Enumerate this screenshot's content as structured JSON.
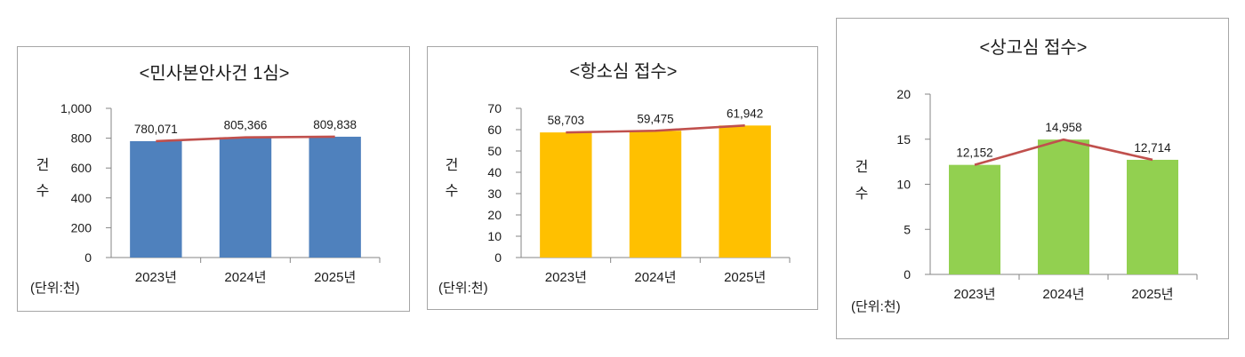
{
  "chart_data": [
    {
      "type": "bar",
      "title": "<민사본안사건 1심>",
      "categories": [
        "2023년",
        "2024년",
        "2025년"
      ],
      "values": [
        780.071,
        805.366,
        809.838
      ],
      "data_labels": [
        "780,071",
        "805,366",
        "809,838"
      ],
      "overlay_line": true,
      "ylabel": "건수",
      "ylabel_chars": [
        "건",
        "수"
      ],
      "unit": "(단위:천)",
      "ylim": [
        0,
        1000
      ],
      "yticks": [
        0,
        200,
        400,
        600,
        800,
        1000
      ],
      "ytick_labels": [
        "0",
        "200",
        "400",
        "600",
        "800",
        "1,000"
      ],
      "bar_color": "#4f81bd",
      "line_color": "#c0504d",
      "grid": false
    },
    {
      "type": "bar",
      "title": "<항소심 접수>",
      "categories": [
        "2023년",
        "2024년",
        "2025년"
      ],
      "values": [
        58.703,
        59.475,
        61.942
      ],
      "data_labels": [
        "58,703",
        "59,475",
        "61,942"
      ],
      "overlay_line": true,
      "ylabel": "건수",
      "ylabel_chars": [
        "건",
        "수"
      ],
      "unit": "(단위:천)",
      "ylim": [
        0,
        70
      ],
      "yticks": [
        0,
        10,
        20,
        30,
        40,
        50,
        60,
        70
      ],
      "ytick_labels": [
        "0",
        "10",
        "20",
        "30",
        "40",
        "50",
        "60",
        "70"
      ],
      "bar_color": "#ffc000",
      "line_color": "#c0504d",
      "grid": false
    },
    {
      "type": "bar",
      "title": "<상고심 접수>",
      "categories": [
        "2023년",
        "2024년",
        "2025년"
      ],
      "values": [
        12.152,
        14.958,
        12.714
      ],
      "data_labels": [
        "12,152",
        "14,958",
        "12,714"
      ],
      "overlay_line": true,
      "ylabel": "건수",
      "ylabel_chars": [
        "건",
        "수"
      ],
      "unit": "(단위:천)",
      "ylim": [
        0,
        20
      ],
      "yticks": [
        0,
        5,
        10,
        15,
        20
      ],
      "ytick_labels": [
        "0",
        "5",
        "10",
        "15",
        "20"
      ],
      "bar_color": "#92d050",
      "line_color": "#c0504d",
      "grid": false
    }
  ]
}
